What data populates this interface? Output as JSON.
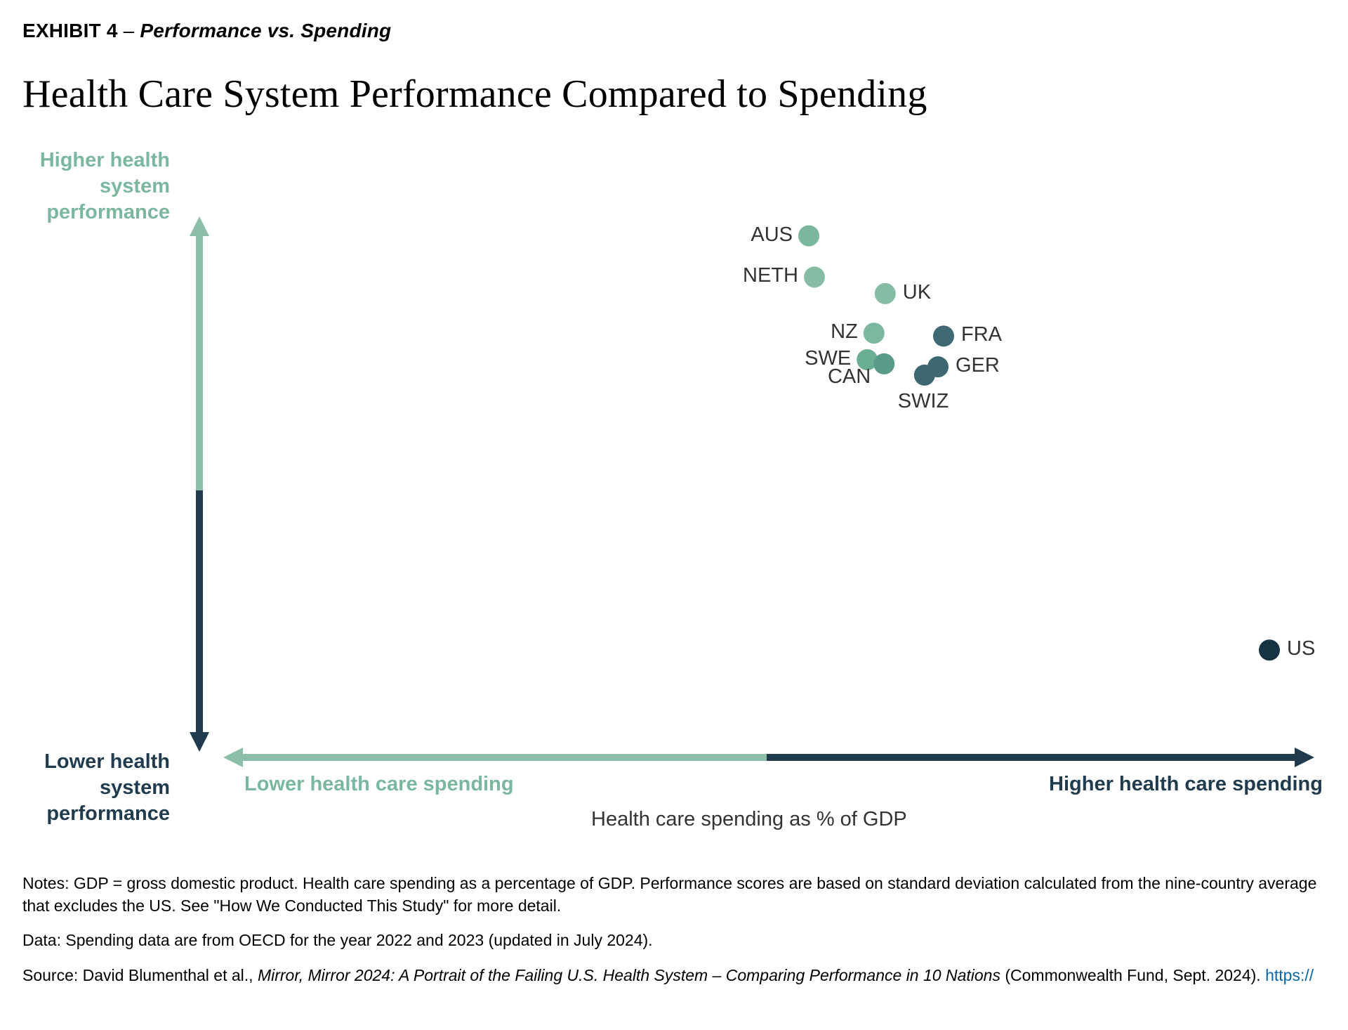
{
  "exhibit": {
    "label": "EXHIBIT 4",
    "separator": " – ",
    "subtitle": "Performance vs. Spending"
  },
  "title": "Health Care System Performance Compared to Spending",
  "chart": {
    "type": "scatter",
    "background_color": "#ffffff",
    "xlim": [
      0,
      100
    ],
    "ylim": [
      0,
      100
    ],
    "axis_color_up_right": "#1f3b4d",
    "axis_color_down_left": "#8cbea9",
    "axis_stroke_width": 10,
    "arrow_head_size": 28,
    "marker_radius": 15,
    "label_fontsize": 29,
    "label_color": "#333333",
    "points": [
      {
        "code": "AUS",
        "x": 55.0,
        "y": 86.0,
        "color": "#7ab79e",
        "label_side": "left"
      },
      {
        "code": "NETH",
        "x": 55.5,
        "y": 79.0,
        "color": "#86bca4",
        "label_side": "left"
      },
      {
        "code": "UK",
        "x": 61.8,
        "y": 76.2,
        "color": "#85bca3",
        "label_side": "right"
      },
      {
        "code": "NZ",
        "x": 60.8,
        "y": 69.5,
        "color": "#7cb89f",
        "label_side": "left"
      },
      {
        "code": "FRA",
        "x": 67.0,
        "y": 69.0,
        "color": "#3f6a73",
        "label_side": "right"
      },
      {
        "code": "SWE",
        "x": 60.2,
        "y": 65.0,
        "color": "#6aae94",
        "label_side": "left"
      },
      {
        "code": "CAN",
        "x": 61.7,
        "y": 64.3,
        "color": "#5a9a89",
        "label_side": "left_below"
      },
      {
        "code": "GER",
        "x": 66.5,
        "y": 63.8,
        "color": "#3d6872",
        "label_side": "right"
      },
      {
        "code": "SWIZ",
        "x": 65.3,
        "y": 62.4,
        "color": "#3d6872",
        "label_side": "below"
      },
      {
        "code": "US",
        "x": 96.0,
        "y": 15.8,
        "color": "#163344",
        "label_side": "right"
      }
    ],
    "y_axis_top_label": "Higher health\nsystem\nperformance",
    "y_axis_bottom_label": "Lower health\nsystem\nperformance",
    "x_axis_left_label": "Lower health care spending",
    "x_axis_right_label": "Higher health care spending",
    "x_axis_title": "Health care spending as % of GDP",
    "axis_label_fontsize": 29,
    "axis_label_green": "#7ab79e",
    "axis_label_navy": "#1f3b4d"
  },
  "footnotes": {
    "notes": "Notes: GDP = gross domestic product. Health care spending as a percentage of GDP. Performance scores are based on standard deviation calculated from the nine-country average that excludes the US. See \"How We Conducted This Study\" for more detail.",
    "data": "Data: Spending data are from OECD for the year 2022 and 2023 (updated in July 2024).",
    "source_prefix": "Source: David Blumenthal et al., ",
    "source_italic": "Mirror, Mirror 2024: A Portrait of the Failing U.S. Health System – Comparing Performance in 10 Nations",
    "source_suffix": " (Commonwealth Fund, Sept. 2024). ",
    "source_link": "https://"
  }
}
